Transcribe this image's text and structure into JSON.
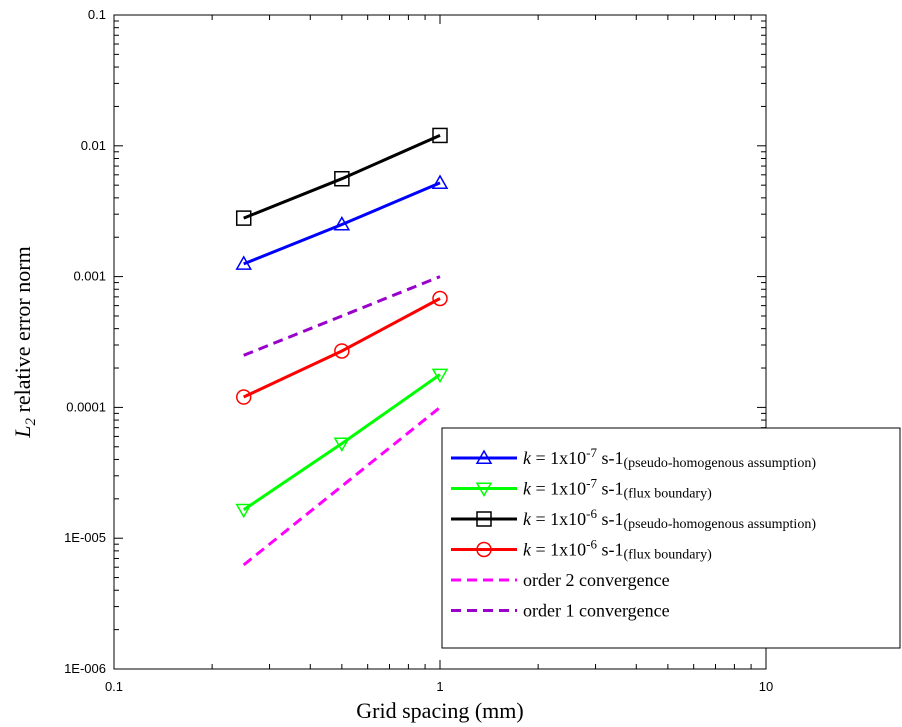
{
  "chart_data": {
    "type": "line",
    "xlabel": "Grid spacing (mm)",
    "ylabel": {
      "symbol": "L",
      "subscript": "2",
      "rest": " relative error norm"
    },
    "xscale": "log",
    "yscale": "log",
    "xlim": [
      0.1,
      10
    ],
    "ylim": [
      1e-06,
      0.1
    ],
    "x_tick_labels": [
      {
        "value": 0.1,
        "label": "0.1"
      },
      {
        "value": 1,
        "label": "1"
      },
      {
        "value": 10,
        "label": "10"
      }
    ],
    "y_tick_labels": [
      {
        "value": 0.1,
        "label": "0.1"
      },
      {
        "value": 0.01,
        "label": "0.01"
      },
      {
        "value": 0.001,
        "label": "0.001"
      },
      {
        "value": 0.0001,
        "label": "0.0001"
      },
      {
        "value": 1e-05,
        "label": "1E-005"
      },
      {
        "value": 1e-06,
        "label": "1E-006"
      }
    ],
    "grid": false,
    "legend_position": "bottom-right",
    "series": [
      {
        "label": {
          "k": "k",
          "mid": " = 1x10",
          "exp": "-7",
          "unit": " s-1",
          "note": "(pseudo-homogenous assumption)"
        },
        "color": "#0000ff",
        "marker": "triangle-up",
        "dash": "solid",
        "x": [
          0.25,
          0.5,
          1.0
        ],
        "y": [
          0.00125,
          0.0025,
          0.0052
        ]
      },
      {
        "label": {
          "k": "k",
          "mid": " = 1x10",
          "exp": "-7",
          "unit": " s-1",
          "note": "(flux boundary)"
        },
        "color": "#00ff00",
        "marker": "triangle-down",
        "dash": "solid",
        "x": [
          0.25,
          0.5,
          1.0
        ],
        "y": [
          1.65e-05,
          5.3e-05,
          0.000178
        ]
      },
      {
        "label": {
          "k": "k",
          "mid": " = 1x10",
          "exp": "-6",
          "unit": " s-1",
          "note": "(pseudo-homogenous assumption)"
        },
        "color": "#000000",
        "marker": "square",
        "dash": "solid",
        "x": [
          0.25,
          0.5,
          1.0
        ],
        "y": [
          0.0028,
          0.0056,
          0.012
        ]
      },
      {
        "label": {
          "k": "k",
          "mid": " = 1x10",
          "exp": "-6",
          "unit": " s-1",
          "note": "(flux boundary)"
        },
        "color": "#ff0000",
        "marker": "circle",
        "dash": "solid",
        "x": [
          0.25,
          0.5,
          1.0
        ],
        "y": [
          0.00012,
          0.00027,
          0.00068
        ]
      },
      {
        "label": {
          "text": "order 2 convergence"
        },
        "color": "#ff00ff",
        "marker": "none",
        "dash": "dashed",
        "x": [
          0.25,
          0.5,
          1.0
        ],
        "y": [
          6.25e-06,
          2.5e-05,
          0.0001
        ]
      },
      {
        "label": {
          "text": "order 1 convergence"
        },
        "color": "#9900cc",
        "marker": "none",
        "dash": "dashed",
        "x": [
          0.25,
          0.5,
          1.0
        ],
        "y": [
          0.00025,
          0.0005,
          0.001
        ]
      }
    ]
  }
}
